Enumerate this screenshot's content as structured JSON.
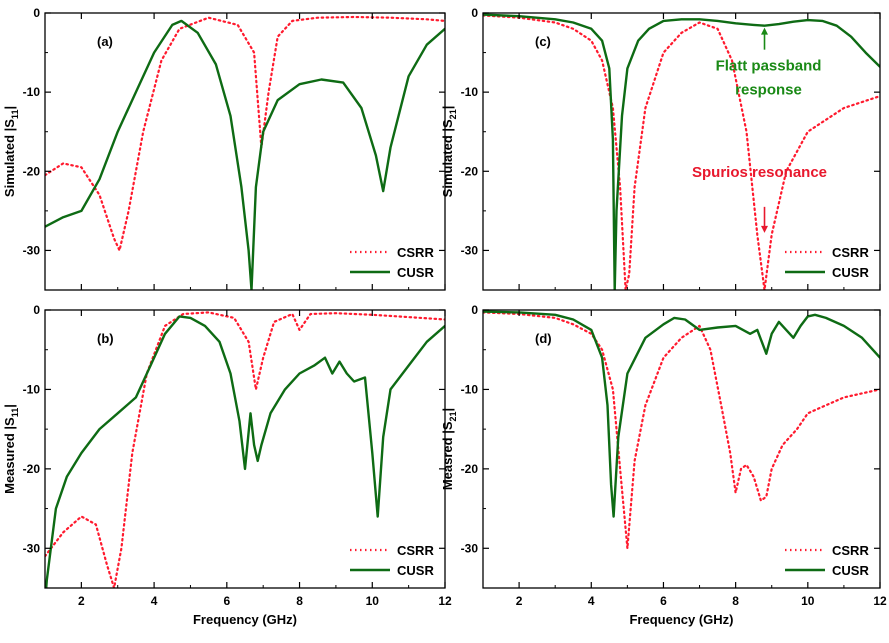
{
  "colors": {
    "csrr": "#ff1a2e",
    "cusr": "#0e6b14",
    "axis": "#000000",
    "green_note": "#1a8a16",
    "red_note": "#e8182d"
  },
  "chart_data": [
    {
      "type": "line",
      "panel": "a",
      "label": "(a)",
      "ylabel": "Simulated |S11|",
      "ylabel_main": "Simulated |S",
      "ylabel_sub": "11",
      "ylabel_end": "|",
      "xlabel": "",
      "xlim": [
        1,
        12
      ],
      "ylim": [
        -35,
        0
      ],
      "xticks": [
        2,
        4,
        6,
        8,
        10,
        12
      ],
      "yticks": [
        0,
        -10,
        -20,
        -30
      ],
      "xtick_labels": [],
      "ytick_labels": [
        "0",
        "-10",
        "-20",
        "-30"
      ],
      "legend": [
        "CSRR",
        "CUSR"
      ],
      "legend_position": "bottom-right",
      "series": [
        {
          "name": "CSRR",
          "style": "dotted",
          "x": [
            1.0,
            1.5,
            2.0,
            2.5,
            2.9,
            3.05,
            3.3,
            3.7,
            4.2,
            4.7,
            5.5,
            6.3,
            6.75,
            6.95,
            7.15,
            7.4,
            7.8,
            8.5,
            9.5,
            10.5,
            11.5,
            12.0
          ],
          "y": [
            -20.5,
            -19,
            -19.5,
            -23,
            -28.5,
            -30,
            -25,
            -15,
            -6,
            -2,
            -0.6,
            -1.5,
            -5,
            -17,
            -10,
            -3,
            -1,
            -0.6,
            -0.5,
            -0.6,
            -0.8,
            -1
          ]
        },
        {
          "name": "CUSR",
          "style": "solid",
          "x": [
            1.0,
            1.5,
            2.0,
            2.5,
            3.0,
            3.5,
            4.0,
            4.5,
            4.75,
            5.2,
            5.7,
            6.1,
            6.4,
            6.6,
            6.68,
            6.8,
            7.0,
            7.4,
            8.0,
            8.6,
            9.2,
            9.7,
            10.1,
            10.3,
            10.5,
            11.0,
            11.5,
            12.0
          ],
          "y": [
            -27,
            -25.8,
            -25,
            -21,
            -15,
            -10,
            -5,
            -1.5,
            -1,
            -2.5,
            -6.5,
            -13,
            -22,
            -30,
            -35,
            -22,
            -15,
            -11,
            -9,
            -8.4,
            -8.8,
            -12,
            -18,
            -22.5,
            -17,
            -8,
            -4,
            -2
          ]
        }
      ]
    },
    {
      "type": "line",
      "panel": "b",
      "label": "(b)",
      "ylabel": "Measured |S11|",
      "ylabel_main": "Measured |S",
      "ylabel_sub": "11",
      "ylabel_end": "|",
      "xlabel": "Frequency (GHz)",
      "xlim": [
        1,
        12
      ],
      "ylim": [
        -35,
        0
      ],
      "xticks": [
        2,
        4,
        6,
        8,
        10,
        12
      ],
      "yticks": [
        0,
        -10,
        -20,
        -30
      ],
      "xtick_labels": [
        "2",
        "4",
        "6",
        "8",
        "10",
        "12"
      ],
      "ytick_labels": [
        "0",
        "-10",
        "-20",
        "-30"
      ],
      "legend": [
        "CSRR",
        "CUSR"
      ],
      "legend_position": "bottom-right",
      "series": [
        {
          "name": "CSRR",
          "style": "dotted",
          "x": [
            1.0,
            1.5,
            2.0,
            2.4,
            2.7,
            2.9,
            3.1,
            3.4,
            3.8,
            4.3,
            4.8,
            5.5,
            6.2,
            6.6,
            6.8,
            7.0,
            7.3,
            7.8,
            8.0,
            8.3,
            9.0,
            10.0,
            11.0,
            12.0
          ],
          "y": [
            -31,
            -28,
            -26,
            -27,
            -32,
            -35,
            -30,
            -18,
            -8,
            -2,
            -0.5,
            -0.3,
            -1,
            -4,
            -10,
            -6,
            -1.5,
            -0.5,
            -2.5,
            -0.5,
            -0.4,
            -0.6,
            -0.9,
            -1.2
          ]
        },
        {
          "name": "CUSR",
          "style": "solid",
          "x": [
            1.0,
            1.05,
            1.3,
            1.6,
            2.0,
            2.5,
            3.0,
            3.5,
            3.9,
            4.3,
            4.7,
            5.0,
            5.4,
            5.8,
            6.1,
            6.35,
            6.5,
            6.65,
            6.75,
            6.85,
            6.95,
            7.2,
            7.6,
            8.0,
            8.4,
            8.7,
            8.9,
            9.1,
            9.3,
            9.5,
            9.8,
            10.0,
            10.15,
            10.3,
            10.5,
            11.0,
            11.5,
            12.0
          ],
          "y": [
            -37,
            -34,
            -25,
            -21,
            -18,
            -15,
            -13,
            -11,
            -7,
            -3,
            -0.8,
            -1,
            -2,
            -4,
            -8,
            -14,
            -20,
            -13,
            -17,
            -19,
            -17,
            -13,
            -10,
            -8,
            -7,
            -6,
            -8,
            -6.5,
            -8,
            -9,
            -8.5,
            -18,
            -26,
            -16,
            -10,
            -7,
            -4,
            -2
          ]
        }
      ]
    },
    {
      "type": "line",
      "panel": "c",
      "label": "(c)",
      "ylabel": "Simulated |S21|",
      "ylabel_main": "Simulated |S",
      "ylabel_sub": "21",
      "ylabel_end": "|",
      "xlabel": "",
      "xlim": [
        1,
        12
      ],
      "ylim": [
        -35,
        0
      ],
      "xticks": [
        2,
        4,
        6,
        8,
        10,
        12
      ],
      "yticks": [
        0,
        -10,
        -20,
        -30
      ],
      "xtick_labels": [],
      "ytick_labels": [
        "0",
        "-10",
        "-20",
        "-30"
      ],
      "legend": [
        "CSRR",
        "CUSR"
      ],
      "legend_position": "bottom-right",
      "annotations": [
        {
          "text_lines": [
            "Flatt passband",
            "response"
          ],
          "color": "green_note",
          "x": 8.8,
          "y": -1.6,
          "arrow": "up"
        },
        {
          "text_lines": [
            "Spurios resonance"
          ],
          "color": "red_note",
          "x": 8.8,
          "y": -25,
          "arrow": "down"
        }
      ],
      "series": [
        {
          "name": "CSRR",
          "style": "dotted",
          "x": [
            1.0,
            2.0,
            3.0,
            3.5,
            4.0,
            4.3,
            4.6,
            4.8,
            4.95,
            5.05,
            5.2,
            5.5,
            6.0,
            6.5,
            7.0,
            7.5,
            7.9,
            8.3,
            8.6,
            8.8,
            9.0,
            9.4,
            10.0,
            11.0,
            12.0
          ],
          "y": [
            -0.3,
            -0.6,
            -1.2,
            -2,
            -3.5,
            -6,
            -12,
            -22,
            -35,
            -33,
            -22,
            -12,
            -5,
            -2.5,
            -1.2,
            -2,
            -6,
            -15,
            -28,
            -35,
            -28,
            -20,
            -15,
            -12,
            -10.5
          ]
        },
        {
          "name": "CUSR",
          "style": "solid",
          "x": [
            1.0,
            2.0,
            3.0,
            3.5,
            4.0,
            4.3,
            4.5,
            4.6,
            4.65,
            4.7,
            4.85,
            5.0,
            5.3,
            5.6,
            6.0,
            6.5,
            7.0,
            7.5,
            8.0,
            8.5,
            8.8,
            9.2,
            9.6,
            10.0,
            10.4,
            10.8,
            11.2,
            11.6,
            12.0
          ],
          "y": [
            -0.2,
            -0.4,
            -0.8,
            -1.2,
            -2,
            -3.5,
            -7,
            -16,
            -35,
            -25,
            -13,
            -7,
            -3.5,
            -2,
            -1,
            -0.8,
            -0.8,
            -1,
            -1.3,
            -1.5,
            -1.6,
            -1.4,
            -1.1,
            -0.9,
            -1,
            -1.6,
            -3,
            -5,
            -6.8
          ]
        }
      ]
    },
    {
      "type": "line",
      "panel": "d",
      "label": "(d)",
      "ylabel": "Measred |S21|",
      "ylabel_main": "Measred |S",
      "ylabel_sub": "21",
      "ylabel_end": "|",
      "xlabel": "Frequency (GHz)",
      "xlim": [
        1,
        12
      ],
      "ylim": [
        -35,
        0
      ],
      "xticks": [
        2,
        4,
        6,
        8,
        10,
        12
      ],
      "yticks": [
        0,
        -10,
        -20,
        -30
      ],
      "xtick_labels": [
        "2",
        "4",
        "6",
        "8",
        "10",
        "12"
      ],
      "ytick_labels": [
        "0",
        "-10",
        "-20",
        "-30"
      ],
      "legend": [
        "CSRR",
        "CUSR"
      ],
      "legend_position": "bottom-right",
      "series": [
        {
          "name": "CSRR",
          "style": "dotted",
          "x": [
            1.0,
            2.0,
            3.0,
            3.5,
            4.0,
            4.3,
            4.6,
            4.8,
            5.0,
            5.2,
            5.5,
            6.0,
            6.5,
            7.0,
            7.3,
            7.6,
            7.85,
            8.0,
            8.15,
            8.3,
            8.5,
            8.7,
            8.85,
            9.0,
            9.3,
            9.7,
            10.0,
            10.5,
            11.0,
            11.5,
            12.0
          ],
          "y": [
            -0.3,
            -0.5,
            -1,
            -1.8,
            -3,
            -5,
            -10,
            -20,
            -30,
            -19,
            -12,
            -6,
            -3.5,
            -2,
            -5,
            -12,
            -18,
            -23,
            -20,
            -19.5,
            -21,
            -24,
            -23.5,
            -20,
            -17,
            -15,
            -13,
            -12,
            -11,
            -10.5,
            -10
          ]
        },
        {
          "name": "CUSR",
          "style": "solid",
          "x": [
            1.0,
            2.0,
            3.0,
            3.5,
            4.0,
            4.3,
            4.45,
            4.55,
            4.62,
            4.75,
            5.0,
            5.5,
            6.0,
            6.3,
            6.6,
            7.0,
            7.5,
            8.0,
            8.4,
            8.6,
            8.85,
            9.0,
            9.2,
            9.4,
            9.6,
            9.8,
            10.0,
            10.2,
            10.5,
            11.0,
            11.5,
            12.0
          ],
          "y": [
            -0.2,
            -0.3,
            -0.6,
            -1.2,
            -2.5,
            -6,
            -12,
            -22,
            -26,
            -16,
            -8,
            -3.5,
            -1.8,
            -1,
            -1.2,
            -2.5,
            -2.2,
            -2,
            -3,
            -2.5,
            -5.5,
            -3,
            -1.5,
            -2.5,
            -3.5,
            -2,
            -0.8,
            -0.6,
            -1,
            -2,
            -3.5,
            -6
          ]
        }
      ]
    }
  ]
}
